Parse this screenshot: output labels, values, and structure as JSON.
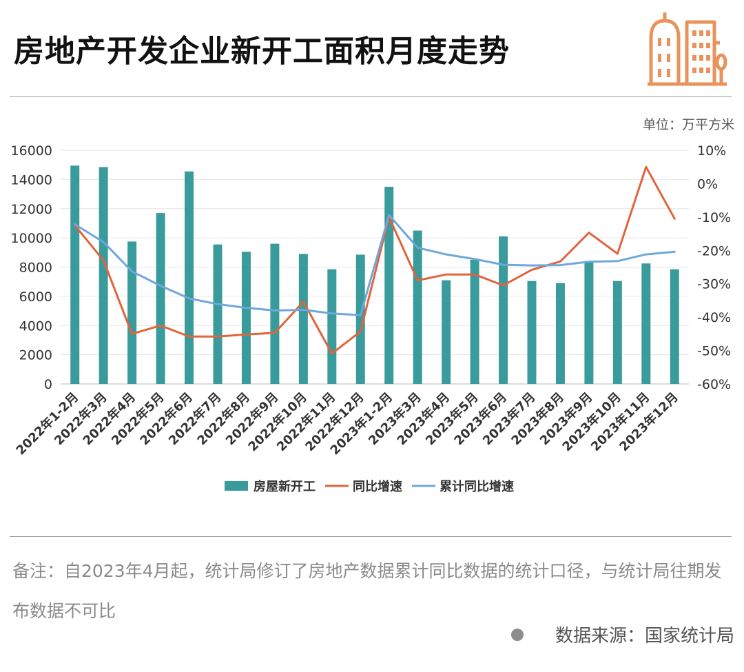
{
  "title": "房地产开发企业新开工面积月度走势",
  "unit": "单位：万平方米",
  "note": "备注：自2023年4月起，统计局修订了房地产数据累计同比数据的统计口径，与统计局往期发布数据不可比",
  "source": "数据来源：国家统计局",
  "icons": {
    "logo": "building-icon",
    "source_dot": "dot-icon"
  },
  "colors": {
    "bar": "#3a9b9c",
    "yoy": "#e0643c",
    "cum": "#6fa7dc",
    "logo": "#e8935b"
  },
  "chart_data": {
    "type": "bar",
    "categories": [
      "2022年1-2月",
      "2022年3月",
      "2022年4月",
      "2022年5月",
      "2022年6月",
      "2022年7月",
      "2022年8月",
      "2022年9月",
      "2022年10月",
      "2022年11月",
      "2022年12月",
      "2023年1-2月",
      "2023年3月",
      "2023年4月",
      "2023年5月",
      "2023年6月",
      "2023年7月",
      "2023年8月",
      "2023年9月",
      "2023年10月",
      "2023年11月",
      "2023年12月"
    ],
    "series": [
      {
        "name": "房屋新开工",
        "type": "bar",
        "axis": "left",
        "values": [
          14950,
          14850,
          9750,
          11700,
          14550,
          9550,
          9050,
          9600,
          8900,
          7850,
          8850,
          13500,
          10500,
          7100,
          8500,
          10100,
          7050,
          6900,
          8400,
          7050,
          8250,
          7850
        ]
      },
      {
        "name": "同比增速",
        "type": "line",
        "axis": "right",
        "values": [
          -12.5,
          -23.0,
          -45.0,
          -42.5,
          -45.8,
          -45.8,
          -45.2,
          -44.7,
          -35.4,
          -50.9,
          -44.3,
          -10.0,
          -29.0,
          -27.2,
          -27.2,
          -30.5,
          -25.8,
          -23.3,
          -14.7,
          -21.0,
          5.0,
          -10.5
        ]
      },
      {
        "name": "累计同比增速",
        "type": "line",
        "axis": "right",
        "values": [
          -12.2,
          -17.5,
          -26.3,
          -30.6,
          -34.4,
          -36.1,
          -37.2,
          -38.0,
          -37.8,
          -38.9,
          -39.4,
          -9.4,
          -19.2,
          -21.2,
          -22.6,
          -24.3,
          -24.5,
          -24.4,
          -23.4,
          -23.2,
          -21.2,
          -20.4
        ]
      }
    ],
    "y_left": {
      "ylim": [
        0,
        16000
      ],
      "ticks": [
        "0",
        "2000",
        "4000",
        "6000",
        "8000",
        "10000",
        "12000",
        "14000",
        "16000"
      ]
    },
    "y_right": {
      "ylim": [
        -60,
        10
      ],
      "ticks": [
        "-60%",
        "-50%",
        "-40%",
        "-30%",
        "-20%",
        "-10%",
        "0%",
        "10%"
      ]
    },
    "grid": true,
    "legend_position": "bottom-center"
  }
}
